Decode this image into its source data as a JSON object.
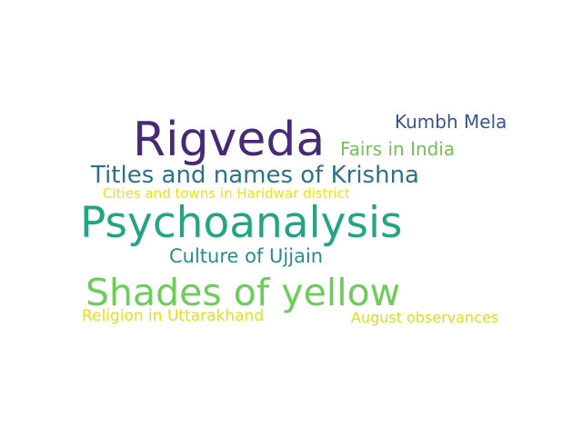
{
  "words": [
    {
      "text": "Rigveda",
      "color": "#482878"
    },
    {
      "text": "Kumbh Mela",
      "color": "#3b528b"
    },
    {
      "text": "Fairs in India",
      "color": "#73c05b"
    },
    {
      "text": "Titles and names of Krishna",
      "color": "#2c728e"
    },
    {
      "text": "Cities and towns in Haridwar district",
      "color": "#e6e51a"
    },
    {
      "text": "Psychoanalysis",
      "color": "#21a585"
    },
    {
      "text": "Culture of Ujjain",
      "color": "#2b8b8b"
    },
    {
      "text": "Shades of yellow",
      "color": "#6ccd5a"
    },
    {
      "text": "Religion in Uttarakhand",
      "color": "#dde318"
    },
    {
      "text": "August observances",
      "color": "#d4e21a"
    }
  ]
}
